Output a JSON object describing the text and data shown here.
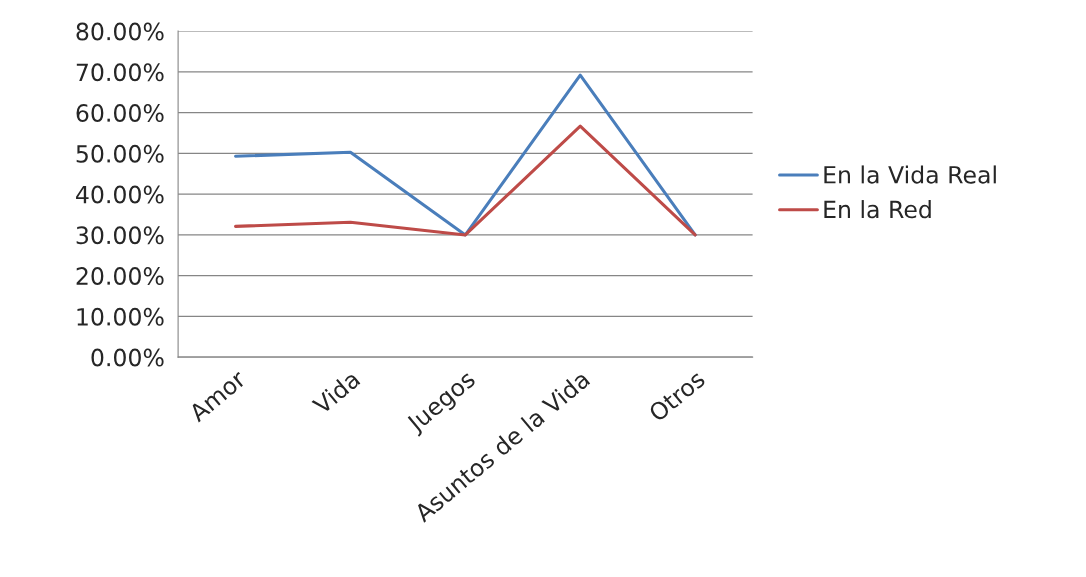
{
  "chart_data": {
    "type": "line",
    "categories": [
      "Amor",
      "Vida",
      "Juegos",
      "Asuntos de la Vida",
      "Otros"
    ],
    "series": [
      {
        "name": "En la Vida Real",
        "color": "#4a7ebb",
        "values": [
          49.3,
          50.3,
          30.0,
          69.2,
          30.0
        ]
      },
      {
        "name": "En la Red",
        "color": "#be4b48",
        "values": [
          32.1,
          33.1,
          30.0,
          56.7,
          30.0
        ]
      }
    ],
    "ylim": [
      0,
      80
    ],
    "yticks": [
      {
        "value": 0,
        "label": "0.00%"
      },
      {
        "value": 10,
        "label": "10.00%"
      },
      {
        "value": 20,
        "label": "20.00%"
      },
      {
        "value": 30,
        "label": "30.00%"
      },
      {
        "value": 40,
        "label": "40.00%"
      },
      {
        "value": 50,
        "label": "50.00%"
      },
      {
        "value": 60,
        "label": "60.00%"
      },
      {
        "value": 70,
        "label": "70.00%"
      },
      {
        "value": 80,
        "label": "80.00%"
      }
    ],
    "grid": "y",
    "legend": "right",
    "marker": "none",
    "line_style": "solid"
  }
}
